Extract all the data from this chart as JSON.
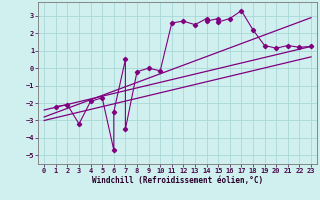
{
  "xlabel": "Windchill (Refroidissement éolien,°C)",
  "bg_color": "#d0f0f0",
  "grid_color": "#aad8d8",
  "line_color": "#800080",
  "xlim": [
    -0.5,
    23.5
  ],
  "ylim": [
    -5.5,
    3.8
  ],
  "xticks": [
    0,
    1,
    2,
    3,
    4,
    5,
    6,
    7,
    8,
    9,
    10,
    11,
    12,
    13,
    14,
    15,
    16,
    17,
    18,
    19,
    20,
    21,
    22,
    23
  ],
  "yticks": [
    -5,
    -4,
    -3,
    -2,
    -1,
    0,
    1,
    2,
    3
  ],
  "scatter_x": [
    1,
    2,
    3,
    4,
    5,
    6,
    6,
    7,
    7,
    8,
    9,
    10,
    11,
    12,
    13,
    14,
    14,
    15,
    15,
    16,
    17,
    18,
    19,
    20,
    21,
    22,
    23
  ],
  "scatter_y": [
    -2.2,
    -2.1,
    -3.2,
    -1.9,
    -1.7,
    -4.7,
    -2.5,
    0.5,
    -3.5,
    -0.2,
    0.0,
    -0.15,
    2.6,
    2.7,
    2.5,
    2.85,
    2.7,
    2.85,
    2.65,
    2.85,
    3.3,
    2.2,
    1.3,
    1.15,
    1.3,
    1.2,
    1.25
  ],
  "line1_x": [
    0,
    23
  ],
  "line1_y": [
    -2.8,
    2.9
  ],
  "line2_x": [
    0,
    23
  ],
  "line2_y": [
    -2.4,
    1.25
  ],
  "line3_x": [
    0,
    23
  ],
  "line3_y": [
    -3.0,
    0.65
  ]
}
